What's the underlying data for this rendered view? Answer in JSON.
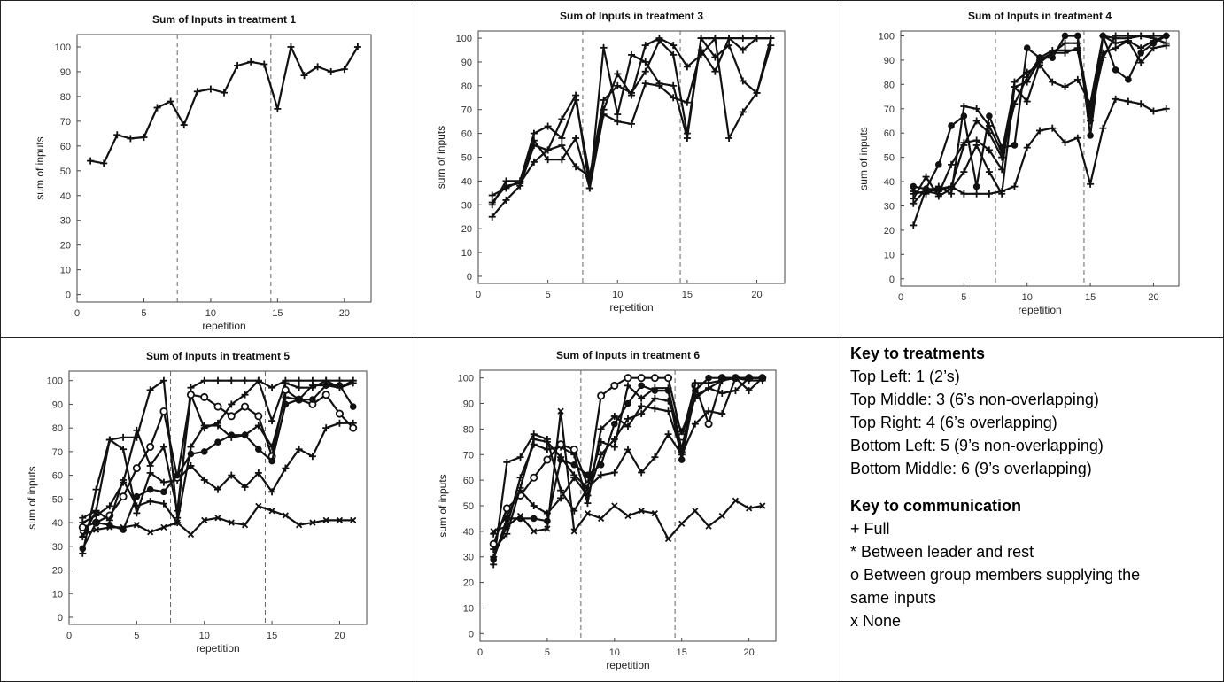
{
  "chart_data": [
    {
      "type": "line",
      "title": "Sum of Inputs in treatment 1",
      "xlabel": "repetition",
      "ylabel": "sum of inputs",
      "xlim": [
        0,
        22
      ],
      "ylim": [
        -3,
        105
      ],
      "xticks": [
        0,
        5,
        10,
        15,
        20
      ],
      "yticks": [
        0,
        10,
        20,
        30,
        40,
        50,
        60,
        70,
        80,
        90,
        100
      ],
      "vlines": [
        7.5,
        14.5
      ],
      "x": [
        1,
        2,
        3,
        4,
        5,
        6,
        7,
        8,
        9,
        10,
        11,
        12,
        13,
        14,
        15,
        16,
        17,
        18,
        19,
        20,
        21
      ],
      "series": [
        {
          "marker": "+",
          "values": [
            54,
            53,
            64.5,
            63,
            63.5,
            75.5,
            78,
            68.5,
            82,
            83,
            81.5,
            92.5,
            94,
            93,
            75,
            100,
            88.5,
            92,
            90,
            91,
            100
          ]
        }
      ]
    },
    {
      "type": "line",
      "title": "Sum of Inputs in treatment 3",
      "xlabel": "repetition",
      "ylabel": "sum of inputs",
      "xlim": [
        0,
        22
      ],
      "ylim": [
        -3,
        103
      ],
      "xticks": [
        0,
        5,
        10,
        15,
        20
      ],
      "yticks": [
        0,
        10,
        20,
        30,
        40,
        50,
        60,
        70,
        80,
        90,
        100
      ],
      "vlines": [
        7.5,
        14.5
      ],
      "x": [
        1,
        2,
        3,
        4,
        5,
        6,
        7,
        8,
        9,
        10,
        11,
        12,
        13,
        14,
        15,
        16,
        17,
        18,
        19,
        20,
        21
      ],
      "series": [
        {
          "marker": "+",
          "values": [
            25,
            32,
            38,
            55,
            53,
            66,
            76,
            37,
            96,
            68,
            93,
            90,
            81,
            80,
            58,
            100,
            100,
            100,
            100,
            100,
            100
          ]
        },
        {
          "marker": "+",
          "values": [
            30,
            40,
            40,
            60,
            63,
            58,
            74,
            42,
            70,
            85,
            76,
            97,
            100,
            97,
            88,
            93,
            100,
            58,
            69,
            77,
            97
          ]
        },
        {
          "marker": "+",
          "values": [
            31,
            38,
            39,
            48,
            53,
            55,
            46,
            42,
            74,
            80,
            77,
            86,
            99,
            93,
            60,
            100,
            92,
            97,
            82,
            77,
            100
          ]
        },
        {
          "marker": "+",
          "values": [
            34,
            37,
            40,
            57,
            49,
            49,
            58,
            37,
            68,
            65,
            64,
            81,
            80,
            75,
            73,
            95,
            86,
            100,
            95,
            100,
            100
          ]
        }
      ]
    },
    {
      "type": "line",
      "title": "Sum of Inputs in treatment 4",
      "xlabel": "repetition",
      "ylabel": "sum of inputs",
      "xlim": [
        0,
        22
      ],
      "ylim": [
        -3,
        102
      ],
      "xticks": [
        0,
        5,
        10,
        15,
        20
      ],
      "yticks": [
        0,
        10,
        20,
        30,
        40,
        50,
        60,
        70,
        80,
        90,
        100
      ],
      "vlines": [
        7.5,
        14.5
      ],
      "x": [
        1,
        2,
        3,
        4,
        5,
        6,
        7,
        8,
        9,
        10,
        11,
        12,
        13,
        14,
        15,
        16,
        17,
        18,
        19,
        20,
        21
      ],
      "series": [
        {
          "marker": "+",
          "values": [
            22,
            37,
            36,
            38,
            35,
            35,
            35,
            36,
            38,
            54,
            61,
            62,
            56,
            58,
            39,
            62,
            74,
            73,
            72,
            69,
            70
          ]
        },
        {
          "marker": "+",
          "values": [
            33,
            42,
            34,
            37,
            44,
            55,
            44,
            35,
            79,
            81,
            90,
            93,
            93,
            95,
            65,
            93,
            95,
            98,
            89,
            95,
            96
          ]
        },
        {
          "marker": "+",
          "values": [
            35,
            36,
            35,
            47,
            56,
            57,
            53,
            45,
            81,
            85,
            88,
            81,
            79,
            82,
            72,
            100,
            97,
            98,
            95,
            98,
            100
          ]
        },
        {
          "marker": "+",
          "values": [
            36,
            35,
            38,
            35,
            71,
            70,
            63,
            52,
            79,
            73,
            89,
            93,
            97,
            97,
            68,
            100,
            99,
            99,
            100,
            99,
            97
          ]
        },
        {
          "marker": "o",
          "filled": true,
          "values": [
            38,
            37,
            47,
            63,
            67,
            38,
            67,
            54,
            55,
            95,
            91,
            91,
            100,
            100,
            59,
            100,
            86,
            82,
            93,
            97,
            100
          ]
        },
        {
          "marker": "+",
          "values": [
            31,
            37,
            37,
            38,
            55,
            65,
            60,
            50,
            72,
            83,
            91,
            94,
            94,
            94,
            67,
            91,
            100,
            100,
            100,
            100,
            100
          ]
        }
      ]
    },
    {
      "type": "line",
      "title": "Sum of Inputs in treatment 5",
      "xlabel": "repetition",
      "ylabel": "sum of inputs",
      "xlim": [
        0,
        22
      ],
      "ylim": [
        -3,
        104
      ],
      "xticks": [
        0,
        5,
        10,
        15,
        20
      ],
      "yticks": [
        0,
        10,
        20,
        30,
        40,
        50,
        60,
        70,
        80,
        90,
        100
      ],
      "vlines": [
        7.5,
        14.5
      ],
      "x": [
        1,
        2,
        3,
        4,
        5,
        6,
        7,
        8,
        9,
        10,
        11,
        12,
        13,
        14,
        15,
        16,
        17,
        18,
        19,
        20,
        21
      ],
      "series": [
        {
          "marker": "x",
          "values": [
            35,
            37,
            38,
            38,
            39,
            36,
            38,
            40,
            35,
            41,
            42,
            40,
            39,
            47,
            45,
            43,
            39,
            40,
            41,
            41,
            41
          ]
        },
        {
          "marker": "+",
          "values": [
            27,
            54,
            75,
            71,
            44,
            61,
            57,
            58,
            64,
            58,
            54,
            60,
            55,
            61,
            53,
            63,
            71,
            68,
            80,
            82,
            82
          ]
        },
        {
          "marker": "+",
          "values": [
            34,
            45,
            75,
            76,
            76,
            96,
            100,
            42,
            97,
            100,
            100,
            100,
            100,
            100,
            97,
            100,
            100,
            100,
            100,
            100,
            100
          ]
        },
        {
          "marker": "+",
          "values": [
            40,
            43,
            47,
            57,
            79,
            64,
            72,
            45,
            94,
            80,
            82,
            90,
            94,
            100,
            83,
            99,
            97,
            97,
            100,
            97,
            100
          ]
        },
        {
          "marker": "o",
          "filled": false,
          "values": [
            38,
            40,
            43,
            51,
            63,
            72,
            87,
            59,
            94,
            93,
            89,
            85,
            89,
            85,
            68,
            96,
            92,
            90,
            94,
            86,
            80
          ]
        },
        {
          "marker": "o",
          "filled": true,
          "values": [
            29,
            40,
            39,
            37,
            51,
            54,
            53,
            60,
            69,
            70,
            74,
            77,
            77,
            71,
            66,
            90,
            92,
            92,
            98,
            98,
            89
          ]
        },
        {
          "marker": "+",
          "values": [
            42,
            45,
            41,
            58,
            47,
            49,
            48,
            40,
            72,
            81,
            81,
            76,
            77,
            81,
            72,
            93,
            92,
            98,
            98,
            97,
            99
          ]
        }
      ]
    },
    {
      "type": "line",
      "title": "Sum of Inputs in treatment 6",
      "xlabel": "repetition",
      "ylabel": "sum of inputs",
      "xlim": [
        0,
        22
      ],
      "ylim": [
        -3,
        103
      ],
      "xticks": [
        0,
        5,
        10,
        15,
        20
      ],
      "yticks": [
        0,
        10,
        20,
        30,
        40,
        50,
        60,
        70,
        80,
        90,
        100
      ],
      "vlines": [
        7.5,
        14.5
      ],
      "x": [
        1,
        2,
        3,
        4,
        5,
        6,
        7,
        8,
        9,
        10,
        11,
        12,
        13,
        14,
        15,
        16,
        17,
        18,
        19,
        20,
        21
      ],
      "series": [
        {
          "marker": "x",
          "values": [
            40,
            42,
            46,
            40,
            41,
            87,
            40,
            47,
            45,
            50,
            46,
            48,
            47,
            37,
            43,
            48,
            42,
            46,
            52,
            49,
            50
          ]
        },
        {
          "marker": "+",
          "values": [
            27,
            67,
            69,
            78,
            76,
            56,
            48,
            57,
            62,
            63,
            72,
            63,
            69,
            78,
            70,
            82,
            87,
            86,
            100,
            100,
            100
          ]
        },
        {
          "marker": "+",
          "values": [
            30,
            42,
            61,
            74,
            72,
            73,
            70,
            51,
            80,
            85,
            81,
            89,
            88,
            87,
            71,
            93,
            96,
            99,
            100,
            95,
            100
          ]
        },
        {
          "marker": "o",
          "filled": false,
          "values": [
            35,
            49,
            54,
            61,
            68,
            74,
            72,
            58,
            93,
            97,
            100,
            100,
            100,
            100,
            77,
            97,
            82,
            100,
            100,
            100,
            100
          ]
        },
        {
          "marker": "o",
          "filled": true,
          "values": [
            29,
            45,
            45,
            45,
            44,
            68,
            66,
            62,
            66,
            82,
            90,
            97,
            95,
            95,
            68,
            95,
            100,
            100,
            100,
            100,
            100
          ]
        },
        {
          "marker": "+",
          "values": [
            33,
            39,
            57,
            76,
            75,
            69,
            62,
            57,
            75,
            73,
            97,
            92,
            96,
            96,
            72,
            98,
            98,
            99,
            100,
            99,
            99
          ]
        },
        {
          "marker": "+",
          "values": [
            39,
            46,
            56,
            50,
            47,
            53,
            61,
            54,
            70,
            76,
            84,
            86,
            92,
            91,
            79,
            92,
            96,
            94,
            95,
            100,
            100
          ]
        }
      ]
    }
  ],
  "key": {
    "treatments_title": "Key to treatments",
    "treatments": [
      "Top Left: 1 (2’s)",
      "Top Middle: 3 (6’s non-overlapping)",
      "Top Right: 4 (6’s overlapping)",
      "Bottom Left: 5 (9’s non-overlapping)",
      "Bottom Middle:  6 (9’s overlapping)"
    ],
    "communication_title": "Key to communication",
    "communication": [
      "+ Full",
      "* Between leader and rest",
      "o Between group members supplying the",
      "same inputs",
      "x None"
    ]
  }
}
